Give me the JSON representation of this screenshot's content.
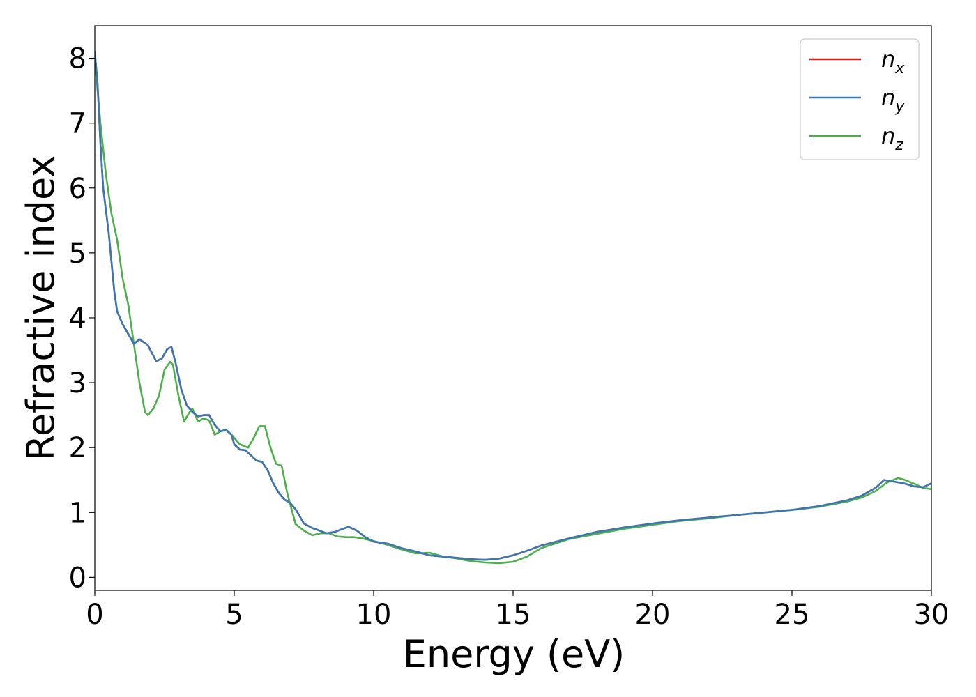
{
  "chart_data": {
    "type": "line",
    "title": "",
    "xlabel": "Energy (eV)",
    "ylabel": "Refractive index",
    "xlim": [
      0,
      30
    ],
    "ylim": [
      -0.2,
      8.5
    ],
    "xticks": [
      0,
      5,
      10,
      15,
      20,
      25,
      30
    ],
    "yticks": [
      0,
      1,
      2,
      3,
      4,
      5,
      6,
      7,
      8
    ],
    "grid": false,
    "legend_position": "top-right",
    "series": [
      {
        "name": "n_x",
        "label_base": "n",
        "label_sub": "x",
        "color": "#e41a1c",
        "points": [
          [
            0,
            8.1
          ],
          [
            0.1,
            7.6
          ],
          [
            0.2,
            6.7
          ],
          [
            0.3,
            6.0
          ],
          [
            0.5,
            5.3
          ],
          [
            0.7,
            4.4
          ],
          [
            0.8,
            4.1
          ],
          [
            1.0,
            3.9
          ],
          [
            1.2,
            3.75
          ],
          [
            1.4,
            3.6
          ],
          [
            1.6,
            3.67
          ],
          [
            1.9,
            3.58
          ],
          [
            2.2,
            3.33
          ],
          [
            2.4,
            3.37
          ],
          [
            2.6,
            3.52
          ],
          [
            2.75,
            3.55
          ],
          [
            2.9,
            3.3
          ],
          [
            3.1,
            2.9
          ],
          [
            3.3,
            2.65
          ],
          [
            3.5,
            2.55
          ],
          [
            3.7,
            2.48
          ],
          [
            3.9,
            2.5
          ],
          [
            4.1,
            2.5
          ],
          [
            4.3,
            2.35
          ],
          [
            4.5,
            2.25
          ],
          [
            4.7,
            2.27
          ],
          [
            4.9,
            2.2
          ],
          [
            5.0,
            2.05
          ],
          [
            5.2,
            1.97
          ],
          [
            5.4,
            1.96
          ],
          [
            5.6,
            1.88
          ],
          [
            5.8,
            1.8
          ],
          [
            6.0,
            1.78
          ],
          [
            6.2,
            1.65
          ],
          [
            6.4,
            1.45
          ],
          [
            6.6,
            1.3
          ],
          [
            6.8,
            1.2
          ],
          [
            7.0,
            1.15
          ],
          [
            7.2,
            1.05
          ],
          [
            7.5,
            0.83
          ],
          [
            7.8,
            0.76
          ],
          [
            8.0,
            0.73
          ],
          [
            8.3,
            0.68
          ],
          [
            8.6,
            0.7
          ],
          [
            8.9,
            0.75
          ],
          [
            9.1,
            0.78
          ],
          [
            9.4,
            0.72
          ],
          [
            9.7,
            0.62
          ],
          [
            10.0,
            0.55
          ],
          [
            10.5,
            0.52
          ],
          [
            11.0,
            0.45
          ],
          [
            11.5,
            0.4
          ],
          [
            12.0,
            0.34
          ],
          [
            12.5,
            0.32
          ],
          [
            13.0,
            0.3
          ],
          [
            13.5,
            0.28
          ],
          [
            14.0,
            0.27
          ],
          [
            14.5,
            0.29
          ],
          [
            15.0,
            0.34
          ],
          [
            15.5,
            0.41
          ],
          [
            16.0,
            0.49
          ],
          [
            17.0,
            0.6
          ],
          [
            18.0,
            0.7
          ],
          [
            19.0,
            0.77
          ],
          [
            20.0,
            0.83
          ],
          [
            21.0,
            0.88
          ],
          [
            22.0,
            0.92
          ],
          [
            23.0,
            0.96
          ],
          [
            24.0,
            1.0
          ],
          [
            25.0,
            1.04
          ],
          [
            26.0,
            1.1
          ],
          [
            27.0,
            1.19
          ],
          [
            27.5,
            1.26
          ],
          [
            28.0,
            1.38
          ],
          [
            28.3,
            1.5
          ],
          [
            28.6,
            1.48
          ],
          [
            29.0,
            1.45
          ],
          [
            29.4,
            1.4
          ],
          [
            29.7,
            1.39
          ],
          [
            30.0,
            1.45
          ]
        ]
      },
      {
        "name": "n_y",
        "label_base": "n",
        "label_sub": "y",
        "color": "#3a78b5",
        "points": [
          [
            0,
            8.1
          ],
          [
            0.1,
            7.6
          ],
          [
            0.2,
            6.7
          ],
          [
            0.3,
            6.0
          ],
          [
            0.5,
            5.3
          ],
          [
            0.7,
            4.4
          ],
          [
            0.8,
            4.1
          ],
          [
            1.0,
            3.9
          ],
          [
            1.2,
            3.75
          ],
          [
            1.4,
            3.6
          ],
          [
            1.6,
            3.67
          ],
          [
            1.9,
            3.58
          ],
          [
            2.2,
            3.33
          ],
          [
            2.4,
            3.37
          ],
          [
            2.6,
            3.52
          ],
          [
            2.75,
            3.55
          ],
          [
            2.9,
            3.3
          ],
          [
            3.1,
            2.9
          ],
          [
            3.3,
            2.65
          ],
          [
            3.5,
            2.55
          ],
          [
            3.7,
            2.48
          ],
          [
            3.9,
            2.5
          ],
          [
            4.1,
            2.5
          ],
          [
            4.3,
            2.35
          ],
          [
            4.5,
            2.25
          ],
          [
            4.7,
            2.27
          ],
          [
            4.9,
            2.2
          ],
          [
            5.0,
            2.05
          ],
          [
            5.2,
            1.97
          ],
          [
            5.4,
            1.96
          ],
          [
            5.6,
            1.88
          ],
          [
            5.8,
            1.8
          ],
          [
            6.0,
            1.78
          ],
          [
            6.2,
            1.65
          ],
          [
            6.4,
            1.45
          ],
          [
            6.6,
            1.3
          ],
          [
            6.8,
            1.2
          ],
          [
            7.0,
            1.15
          ],
          [
            7.2,
            1.05
          ],
          [
            7.5,
            0.83
          ],
          [
            7.8,
            0.76
          ],
          [
            8.0,
            0.73
          ],
          [
            8.3,
            0.68
          ],
          [
            8.6,
            0.7
          ],
          [
            8.9,
            0.75
          ],
          [
            9.1,
            0.78
          ],
          [
            9.4,
            0.72
          ],
          [
            9.7,
            0.62
          ],
          [
            10.0,
            0.55
          ],
          [
            10.5,
            0.52
          ],
          [
            11.0,
            0.45
          ],
          [
            11.5,
            0.4
          ],
          [
            12.0,
            0.34
          ],
          [
            12.5,
            0.32
          ],
          [
            13.0,
            0.3
          ],
          [
            13.5,
            0.28
          ],
          [
            14.0,
            0.27
          ],
          [
            14.5,
            0.29
          ],
          [
            15.0,
            0.34
          ],
          [
            15.5,
            0.41
          ],
          [
            16.0,
            0.49
          ],
          [
            17.0,
            0.6
          ],
          [
            18.0,
            0.7
          ],
          [
            19.0,
            0.77
          ],
          [
            20.0,
            0.83
          ],
          [
            21.0,
            0.88
          ],
          [
            22.0,
            0.92
          ],
          [
            23.0,
            0.96
          ],
          [
            24.0,
            1.0
          ],
          [
            25.0,
            1.04
          ],
          [
            26.0,
            1.1
          ],
          [
            27.0,
            1.19
          ],
          [
            27.5,
            1.26
          ],
          [
            28.0,
            1.38
          ],
          [
            28.3,
            1.5
          ],
          [
            28.6,
            1.48
          ],
          [
            29.0,
            1.45
          ],
          [
            29.4,
            1.4
          ],
          [
            29.7,
            1.39
          ],
          [
            30.0,
            1.45
          ]
        ]
      },
      {
        "name": "n_z",
        "label_base": "n",
        "label_sub": "z",
        "color": "#4daf4a",
        "points": [
          [
            0,
            8.0
          ],
          [
            0.1,
            7.5
          ],
          [
            0.2,
            7.0
          ],
          [
            0.4,
            6.2
          ],
          [
            0.6,
            5.6
          ],
          [
            0.8,
            5.2
          ],
          [
            1.0,
            4.6
          ],
          [
            1.2,
            4.2
          ],
          [
            1.4,
            3.6
          ],
          [
            1.6,
            3.0
          ],
          [
            1.8,
            2.55
          ],
          [
            1.9,
            2.5
          ],
          [
            2.1,
            2.6
          ],
          [
            2.3,
            2.8
          ],
          [
            2.5,
            3.2
          ],
          [
            2.7,
            3.32
          ],
          [
            2.8,
            3.28
          ],
          [
            3.0,
            2.8
          ],
          [
            3.2,
            2.4
          ],
          [
            3.4,
            2.55
          ],
          [
            3.5,
            2.6
          ],
          [
            3.7,
            2.4
          ],
          [
            3.9,
            2.45
          ],
          [
            4.1,
            2.42
          ],
          [
            4.3,
            2.2
          ],
          [
            4.5,
            2.25
          ],
          [
            4.7,
            2.28
          ],
          [
            4.9,
            2.2
          ],
          [
            5.2,
            2.05
          ],
          [
            5.5,
            2.0
          ],
          [
            5.7,
            2.15
          ],
          [
            5.9,
            2.33
          ],
          [
            6.1,
            2.33
          ],
          [
            6.3,
            2.0
          ],
          [
            6.5,
            1.75
          ],
          [
            6.7,
            1.72
          ],
          [
            6.9,
            1.3
          ],
          [
            7.2,
            0.82
          ],
          [
            7.5,
            0.72
          ],
          [
            7.8,
            0.65
          ],
          [
            8.1,
            0.68
          ],
          [
            8.4,
            0.68
          ],
          [
            8.7,
            0.63
          ],
          [
            9.0,
            0.62
          ],
          [
            9.3,
            0.62
          ],
          [
            9.6,
            0.6
          ],
          [
            10.0,
            0.56
          ],
          [
            10.5,
            0.5
          ],
          [
            11.0,
            0.43
          ],
          [
            11.5,
            0.37
          ],
          [
            12.0,
            0.38
          ],
          [
            12.5,
            0.32
          ],
          [
            13.0,
            0.29
          ],
          [
            13.5,
            0.25
          ],
          [
            14.0,
            0.23
          ],
          [
            14.5,
            0.22
          ],
          [
            15.0,
            0.24
          ],
          [
            15.5,
            0.32
          ],
          [
            16.0,
            0.45
          ],
          [
            17.0,
            0.59
          ],
          [
            18.0,
            0.67
          ],
          [
            19.0,
            0.75
          ],
          [
            20.0,
            0.81
          ],
          [
            21.0,
            0.87
          ],
          [
            22.0,
            0.91
          ],
          [
            23.0,
            0.96
          ],
          [
            24.0,
            1.0
          ],
          [
            25.0,
            1.04
          ],
          [
            26.0,
            1.09
          ],
          [
            27.0,
            1.17
          ],
          [
            27.5,
            1.23
          ],
          [
            28.0,
            1.33
          ],
          [
            28.4,
            1.46
          ],
          [
            28.8,
            1.53
          ],
          [
            29.0,
            1.51
          ],
          [
            29.4,
            1.44
          ],
          [
            29.7,
            1.38
          ],
          [
            30.0,
            1.36
          ]
        ]
      }
    ]
  }
}
